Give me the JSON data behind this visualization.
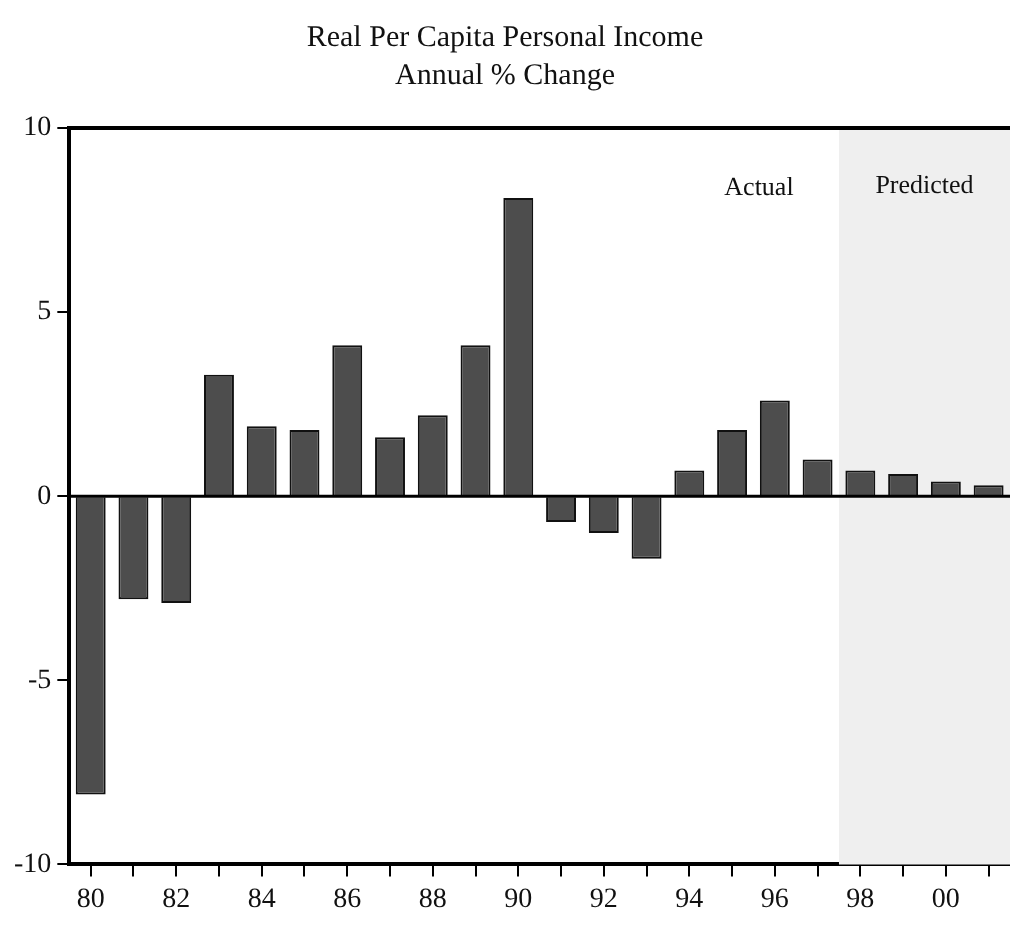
{
  "chart_data": {
    "type": "bar",
    "title": "Real Per Capita Personal Income",
    "subtitle": "Annual % Change",
    "x": [
      1980,
      1981,
      1982,
      1983,
      1984,
      1985,
      1986,
      1987,
      1988,
      1989,
      1990,
      1991,
      1992,
      1993,
      1994,
      1995,
      1996,
      1997,
      1998,
      1999,
      2000,
      2001
    ],
    "values": [
      -8.1,
      -2.8,
      -2.9,
      3.3,
      1.9,
      1.8,
      4.1,
      1.6,
      2.2,
      4.1,
      8.1,
      -0.7,
      -1.0,
      -1.7,
      0.7,
      1.8,
      2.6,
      1.0,
      0.7,
      0.6,
      0.4,
      0.3
    ],
    "color": "#4d4d4d",
    "xlim": [
      1979.5,
      2001.5
    ],
    "xticks": [
      {
        "value": 1980,
        "label": "80"
      },
      {
        "value": 1981,
        "label": null
      },
      {
        "value": 1982,
        "label": "82"
      },
      {
        "value": 1983,
        "label": null
      },
      {
        "value": 1984,
        "label": "84"
      },
      {
        "value": 1985,
        "label": null
      },
      {
        "value": 1986,
        "label": "86"
      },
      {
        "value": 1987,
        "label": null
      },
      {
        "value": 1988,
        "label": "88"
      },
      {
        "value": 1989,
        "label": null
      },
      {
        "value": 1990,
        "label": "90"
      },
      {
        "value": 1991,
        "label": null
      },
      {
        "value": 1992,
        "label": "92"
      },
      {
        "value": 1993,
        "label": null
      },
      {
        "value": 1994,
        "label": "94"
      },
      {
        "value": 1995,
        "label": null
      },
      {
        "value": 1996,
        "label": "96"
      },
      {
        "value": 1997,
        "label": null
      },
      {
        "value": 1998,
        "label": "98"
      },
      {
        "value": 1999,
        "label": null
      },
      {
        "value": 2000,
        "label": "00"
      },
      {
        "value": 2001,
        "label": null
      }
    ],
    "ylim": [
      -10,
      10
    ],
    "yticks": [
      -10,
      -5,
      0,
      5,
      10
    ],
    "ref_lines": [
      {
        "axis": "y",
        "value": 0,
        "label": null,
        "color": "#000000"
      }
    ],
    "bands": [
      {
        "axis": "x",
        "from": 1997.5,
        "to": 2001.5,
        "label": "Predicted",
        "color": "#efefef"
      }
    ],
    "annotations": [
      "Actual"
    ],
    "grid": false,
    "legend": false
  }
}
